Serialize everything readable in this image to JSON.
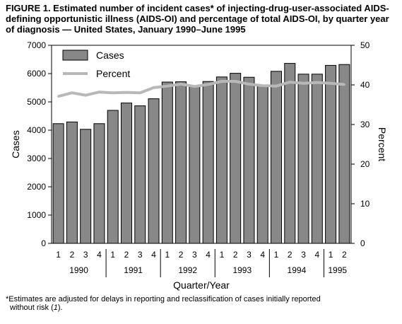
{
  "title": "FIGURE 1. Estimated number of incident cases* of injecting-drug-user-associated AIDS-defining opportunistic illness (AIDS-OI) and percentage of total AIDS-OI, by quarter year of diagnosis — United States, January 1990–June 1995",
  "footnote": {
    "line1": "*Estimates are adjusted for delays in reporting and reclassification of cases initially reported",
    "line2_prefix": "without risk (",
    "line2_ref": "1",
    "line2_suffix": ")."
  },
  "chart_data": {
    "type": "bar",
    "xlabel": "Quarter/Year",
    "ylabel": "Cases",
    "y2label": "Percent",
    "ylim": [
      0,
      7000
    ],
    "y2lim": [
      0,
      50
    ],
    "yticks": [
      0,
      1000,
      2000,
      3000,
      4000,
      5000,
      6000,
      7000
    ],
    "y2ticks": [
      0,
      10,
      20,
      30,
      40,
      50
    ],
    "legend_position": "top-left",
    "colors": {
      "bar": "#888888",
      "percent_line": "#b8b8b8"
    },
    "categories": [
      "1",
      "2",
      "3",
      "4",
      "1",
      "2",
      "3",
      "4",
      "1",
      "2",
      "3",
      "4",
      "1",
      "2",
      "3",
      "4",
      "1",
      "2",
      "3",
      "4",
      "1",
      "2"
    ],
    "years": [
      {
        "label": "1990",
        "quarters": 4
      },
      {
        "label": "1991",
        "quarters": 4
      },
      {
        "label": "1992",
        "quarters": 4
      },
      {
        "label": "1993",
        "quarters": 4
      },
      {
        "label": "1994",
        "quarters": 4
      },
      {
        "label": "1995",
        "quarters": 2
      }
    ],
    "series": [
      {
        "name": "Cases",
        "type": "bar",
        "axis": "left",
        "values": [
          4230,
          4290,
          4030,
          4230,
          4700,
          4960,
          4860,
          5110,
          5700,
          5710,
          5550,
          5720,
          5880,
          6010,
          5870,
          5570,
          6080,
          6360,
          5980,
          5980,
          6290,
          6320
        ]
      },
      {
        "name": "Percent",
        "type": "line",
        "axis": "right",
        "values": [
          37.1,
          38.0,
          37.4,
          38.2,
          38.0,
          38.1,
          38.0,
          39.3,
          39.7,
          40.2,
          39.6,
          40.1,
          40.9,
          40.9,
          40.2,
          39.8,
          39.7,
          40.7,
          40.4,
          40.6,
          40.4,
          40.1
        ]
      }
    ]
  }
}
